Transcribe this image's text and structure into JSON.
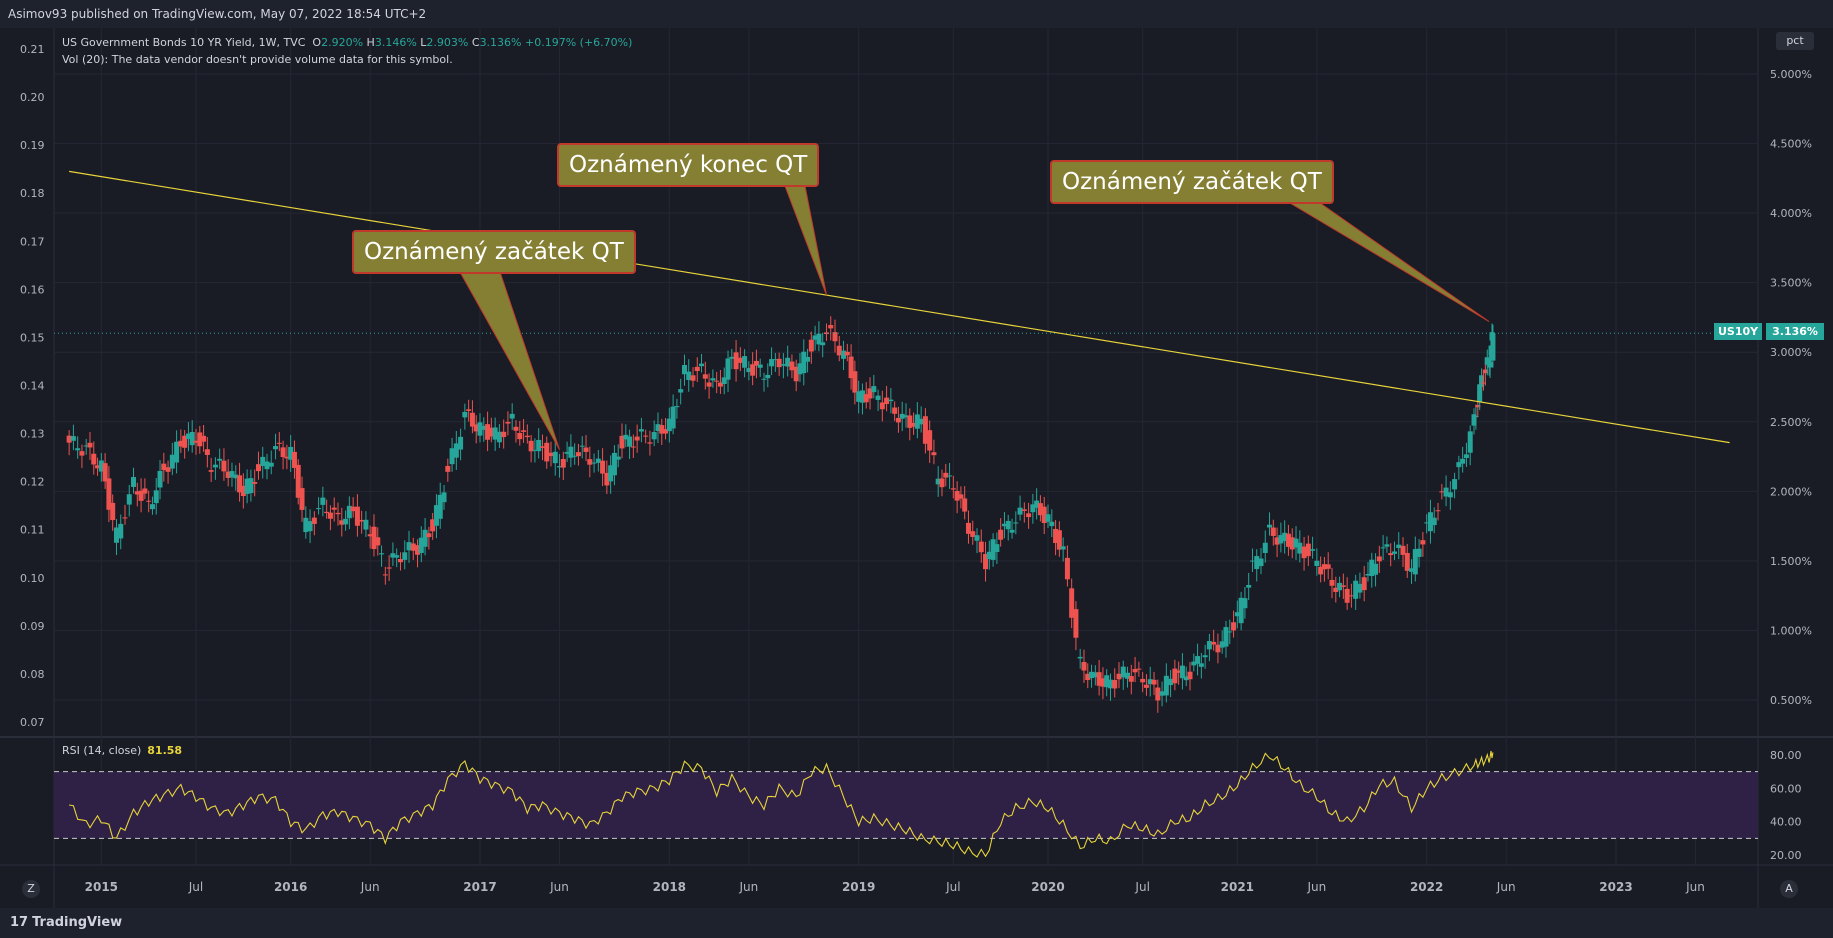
{
  "header": {
    "published_text": "Asimov93 published on TradingView.com, May 07, 2022 18:54 UTC+2"
  },
  "legend": {
    "symbol_text": "US Government Bonds 10 YR Yield, 1W, TVC",
    "ohlc": {
      "o_label": "O",
      "o": "2.920%",
      "h_label": "H",
      "h": "3.146%",
      "l_label": "L",
      "l": "2.903%",
      "c_label": "C",
      "c": "3.136%",
      "change": "+0.197% (+6.70%)"
    },
    "vol_text": "Vol (20): The data vendor doesn't provide volume data for this symbol."
  },
  "rsi": {
    "label": "RSI (14, close)",
    "value": "81.58"
  },
  "price_tag": {
    "symbol": "US10Y",
    "price": "3.136%"
  },
  "pct_button": "pct",
  "z_button": "Z",
  "a_button": "A",
  "footer": {
    "logo_text": "TradingView",
    "logo_mark": "17"
  },
  "annotations": [
    {
      "text": "Oznámený začátek QT"
    },
    {
      "text": "Oznámený konec QT"
    },
    {
      "text": "Oznámený začátek QT"
    }
  ],
  "colors": {
    "up": "#26a69a",
    "down": "#ef5350",
    "trendline": "#e7d33a",
    "rsi_line": "#e7d33a",
    "rsi_band": "#2e2145",
    "background": "#1a1c25",
    "callout_fill": "#857f34",
    "callout_border": "#c0392b"
  },
  "chart_data": {
    "type": "candlestick",
    "title": "US Government Bonds 10 YR Yield, 1W, TVC",
    "left_axis": {
      "ticks": [
        "0.21",
        "0.20",
        "0.19",
        "0.18",
        "0.17",
        "0.16",
        "0.15",
        "0.14",
        "0.13",
        "0.12",
        "0.11",
        "0.10",
        "0.09",
        "0.08",
        "0.07"
      ]
    },
    "right_axis": {
      "unit": "pct",
      "ticks": [
        "5.000%",
        "4.500%",
        "4.000%",
        "3.500%",
        "3.000%",
        "2.500%",
        "2.000%",
        "1.500%",
        "1.000%",
        "0.500%"
      ],
      "range": [
        0.2,
        5.3
      ]
    },
    "x_axis": {
      "ticks": [
        "2015",
        "Jul",
        "2016",
        "Jun",
        "2017",
        "Jun",
        "2018",
        "Jun",
        "2019",
        "Jul",
        "2020",
        "Jul",
        "2021",
        "Jun",
        "2022",
        "Jun",
        "2023",
        "Jun"
      ]
    },
    "close_series": [
      {
        "t": 2014.83,
        "v": 2.35
      },
      {
        "t": 2014.92,
        "v": 2.3
      },
      {
        "t": 2015.0,
        "v": 2.17
      },
      {
        "t": 2015.08,
        "v": 1.68
      },
      {
        "t": 2015.17,
        "v": 2.05
      },
      {
        "t": 2015.25,
        "v": 1.9
      },
      {
        "t": 2015.33,
        "v": 2.15
      },
      {
        "t": 2015.42,
        "v": 2.35
      },
      {
        "t": 2015.5,
        "v": 2.4
      },
      {
        "t": 2015.58,
        "v": 2.2
      },
      {
        "t": 2015.67,
        "v": 2.15
      },
      {
        "t": 2015.75,
        "v": 2.0
      },
      {
        "t": 2015.83,
        "v": 2.15
      },
      {
        "t": 2015.92,
        "v": 2.3
      },
      {
        "t": 2016.0,
        "v": 2.27
      },
      {
        "t": 2016.08,
        "v": 1.75
      },
      {
        "t": 2016.17,
        "v": 1.9
      },
      {
        "t": 2016.25,
        "v": 1.8
      },
      {
        "t": 2016.33,
        "v": 1.85
      },
      {
        "t": 2016.42,
        "v": 1.7
      },
      {
        "t": 2016.5,
        "v": 1.45
      },
      {
        "t": 2016.58,
        "v": 1.55
      },
      {
        "t": 2016.67,
        "v": 1.6
      },
      {
        "t": 2016.75,
        "v": 1.75
      },
      {
        "t": 2016.83,
        "v": 2.15
      },
      {
        "t": 2016.92,
        "v": 2.55
      },
      {
        "t": 2017.0,
        "v": 2.45
      },
      {
        "t": 2017.08,
        "v": 2.4
      },
      {
        "t": 2017.17,
        "v": 2.5
      },
      {
        "t": 2017.25,
        "v": 2.35
      },
      {
        "t": 2017.33,
        "v": 2.3
      },
      {
        "t": 2017.42,
        "v": 2.2
      },
      {
        "t": 2017.5,
        "v": 2.3
      },
      {
        "t": 2017.58,
        "v": 2.25
      },
      {
        "t": 2017.67,
        "v": 2.1
      },
      {
        "t": 2017.75,
        "v": 2.35
      },
      {
        "t": 2017.83,
        "v": 2.38
      },
      {
        "t": 2017.92,
        "v": 2.41
      },
      {
        "t": 2018.0,
        "v": 2.48
      },
      {
        "t": 2018.08,
        "v": 2.85
      },
      {
        "t": 2018.17,
        "v": 2.86
      },
      {
        "t": 2018.25,
        "v": 2.75
      },
      {
        "t": 2018.33,
        "v": 2.95
      },
      {
        "t": 2018.42,
        "v": 2.9
      },
      {
        "t": 2018.5,
        "v": 2.85
      },
      {
        "t": 2018.58,
        "v": 2.95
      },
      {
        "t": 2018.67,
        "v": 2.85
      },
      {
        "t": 2018.75,
        "v": 3.05
      },
      {
        "t": 2018.83,
        "v": 3.15
      },
      {
        "t": 2018.92,
        "v": 3.0
      },
      {
        "t": 2019.0,
        "v": 2.68
      },
      {
        "t": 2019.08,
        "v": 2.7
      },
      {
        "t": 2019.17,
        "v": 2.6
      },
      {
        "t": 2019.25,
        "v": 2.5
      },
      {
        "t": 2019.33,
        "v": 2.5
      },
      {
        "t": 2019.42,
        "v": 2.1
      },
      {
        "t": 2019.5,
        "v": 2.05
      },
      {
        "t": 2019.58,
        "v": 1.75
      },
      {
        "t": 2019.67,
        "v": 1.5
      },
      {
        "t": 2019.75,
        "v": 1.7
      },
      {
        "t": 2019.83,
        "v": 1.8
      },
      {
        "t": 2019.92,
        "v": 1.9
      },
      {
        "t": 2020.0,
        "v": 1.8
      },
      {
        "t": 2020.08,
        "v": 1.55
      },
      {
        "t": 2020.17,
        "v": 0.75
      },
      {
        "t": 2020.25,
        "v": 0.65
      },
      {
        "t": 2020.33,
        "v": 0.62
      },
      {
        "t": 2020.42,
        "v": 0.7
      },
      {
        "t": 2020.5,
        "v": 0.66
      },
      {
        "t": 2020.58,
        "v": 0.55
      },
      {
        "t": 2020.67,
        "v": 0.68
      },
      {
        "t": 2020.75,
        "v": 0.7
      },
      {
        "t": 2020.83,
        "v": 0.85
      },
      {
        "t": 2020.92,
        "v": 0.92
      },
      {
        "t": 2021.0,
        "v": 1.1
      },
      {
        "t": 2021.08,
        "v": 1.45
      },
      {
        "t": 2021.17,
        "v": 1.7
      },
      {
        "t": 2021.25,
        "v": 1.65
      },
      {
        "t": 2021.33,
        "v": 1.6
      },
      {
        "t": 2021.42,
        "v": 1.5
      },
      {
        "t": 2021.5,
        "v": 1.35
      },
      {
        "t": 2021.58,
        "v": 1.25
      },
      {
        "t": 2021.67,
        "v": 1.35
      },
      {
        "t": 2021.75,
        "v": 1.55
      },
      {
        "t": 2021.83,
        "v": 1.6
      },
      {
        "t": 2021.92,
        "v": 1.45
      },
      {
        "t": 2022.0,
        "v": 1.75
      },
      {
        "t": 2022.08,
        "v": 1.95
      },
      {
        "t": 2022.17,
        "v": 2.15
      },
      {
        "t": 2022.25,
        "v": 2.5
      },
      {
        "t": 2022.29,
        "v": 2.8
      },
      {
        "t": 2022.33,
        "v": 2.94
      },
      {
        "t": 2022.35,
        "v": 3.136
      }
    ],
    "rsi": {
      "label": "RSI (14, close)",
      "last": 81.58,
      "levels": [
        70,
        30
      ],
      "ticks": [
        "80.00",
        "60.00",
        "40.00",
        "20.00"
      ],
      "series": [
        {
          "t": 2014.83,
          "v": 50
        },
        {
          "t": 2014.92,
          "v": 38
        },
        {
          "t": 2015.0,
          "v": 42
        },
        {
          "t": 2015.08,
          "v": 30
        },
        {
          "t": 2015.17,
          "v": 45
        },
        {
          "t": 2015.25,
          "v": 52
        },
        {
          "t": 2015.33,
          "v": 56
        },
        {
          "t": 2015.42,
          "v": 60
        },
        {
          "t": 2015.5,
          "v": 55
        },
        {
          "t": 2015.58,
          "v": 48
        },
        {
          "t": 2015.67,
          "v": 45
        },
        {
          "t": 2015.75,
          "v": 50
        },
        {
          "t": 2015.83,
          "v": 55
        },
        {
          "t": 2015.92,
          "v": 53
        },
        {
          "t": 2016.0,
          "v": 40
        },
        {
          "t": 2016.08,
          "v": 35
        },
        {
          "t": 2016.17,
          "v": 44
        },
        {
          "t": 2016.25,
          "v": 46
        },
        {
          "t": 2016.33,
          "v": 42
        },
        {
          "t": 2016.42,
          "v": 38
        },
        {
          "t": 2016.5,
          "v": 30
        },
        {
          "t": 2016.58,
          "v": 40
        },
        {
          "t": 2016.67,
          "v": 45
        },
        {
          "t": 2016.75,
          "v": 50
        },
        {
          "t": 2016.83,
          "v": 65
        },
        {
          "t": 2016.92,
          "v": 75
        },
        {
          "t": 2017.0,
          "v": 66
        },
        {
          "t": 2017.08,
          "v": 62
        },
        {
          "t": 2017.17,
          "v": 58
        },
        {
          "t": 2017.25,
          "v": 48
        },
        {
          "t": 2017.33,
          "v": 50
        },
        {
          "t": 2017.42,
          "v": 45
        },
        {
          "t": 2017.5,
          "v": 42
        },
        {
          "t": 2017.58,
          "v": 38
        },
        {
          "t": 2017.67,
          "v": 45
        },
        {
          "t": 2017.75,
          "v": 55
        },
        {
          "t": 2017.83,
          "v": 58
        },
        {
          "t": 2017.92,
          "v": 60
        },
        {
          "t": 2018.0,
          "v": 65
        },
        {
          "t": 2018.08,
          "v": 74
        },
        {
          "t": 2018.17,
          "v": 72
        },
        {
          "t": 2018.25,
          "v": 58
        },
        {
          "t": 2018.33,
          "v": 66
        },
        {
          "t": 2018.42,
          "v": 55
        },
        {
          "t": 2018.5,
          "v": 50
        },
        {
          "t": 2018.58,
          "v": 60
        },
        {
          "t": 2018.67,
          "v": 55
        },
        {
          "t": 2018.75,
          "v": 70
        },
        {
          "t": 2018.83,
          "v": 72
        },
        {
          "t": 2018.92,
          "v": 55
        },
        {
          "t": 2019.0,
          "v": 40
        },
        {
          "t": 2019.08,
          "v": 42
        },
        {
          "t": 2019.17,
          "v": 38
        },
        {
          "t": 2019.25,
          "v": 35
        },
        {
          "t": 2019.33,
          "v": 30
        },
        {
          "t": 2019.42,
          "v": 28
        },
        {
          "t": 2019.5,
          "v": 26
        },
        {
          "t": 2019.58,
          "v": 22
        },
        {
          "t": 2019.67,
          "v": 20
        },
        {
          "t": 2019.75,
          "v": 40
        },
        {
          "t": 2019.83,
          "v": 48
        },
        {
          "t": 2019.92,
          "v": 52
        },
        {
          "t": 2020.0,
          "v": 48
        },
        {
          "t": 2020.08,
          "v": 38
        },
        {
          "t": 2020.17,
          "v": 25
        },
        {
          "t": 2020.25,
          "v": 30
        },
        {
          "t": 2020.33,
          "v": 28
        },
        {
          "t": 2020.42,
          "v": 38
        },
        {
          "t": 2020.5,
          "v": 36
        },
        {
          "t": 2020.58,
          "v": 32
        },
        {
          "t": 2020.67,
          "v": 40
        },
        {
          "t": 2020.75,
          "v": 42
        },
        {
          "t": 2020.83,
          "v": 50
        },
        {
          "t": 2020.92,
          "v": 55
        },
        {
          "t": 2021.0,
          "v": 62
        },
        {
          "t": 2021.08,
          "v": 72
        },
        {
          "t": 2021.17,
          "v": 80
        },
        {
          "t": 2021.25,
          "v": 72
        },
        {
          "t": 2021.33,
          "v": 62
        },
        {
          "t": 2021.42,
          "v": 55
        },
        {
          "t": 2021.5,
          "v": 45
        },
        {
          "t": 2021.58,
          "v": 40
        },
        {
          "t": 2021.67,
          "v": 48
        },
        {
          "t": 2021.75,
          "v": 62
        },
        {
          "t": 2021.83,
          "v": 64
        },
        {
          "t": 2021.92,
          "v": 48
        },
        {
          "t": 2022.0,
          "v": 60
        },
        {
          "t": 2022.08,
          "v": 66
        },
        {
          "t": 2022.17,
          "v": 70
        },
        {
          "t": 2022.25,
          "v": 74
        },
        {
          "t": 2022.29,
          "v": 76
        },
        {
          "t": 2022.33,
          "v": 78
        },
        {
          "t": 2022.35,
          "v": 81.58
        }
      ]
    },
    "trendline": {
      "from": {
        "t": 2014.83,
        "v": 4.3
      },
      "to": {
        "t": 2023.6,
        "v": 2.35
      },
      "color": "#e7d33a"
    },
    "grid": true,
    "last_price_line": 3.136
  }
}
